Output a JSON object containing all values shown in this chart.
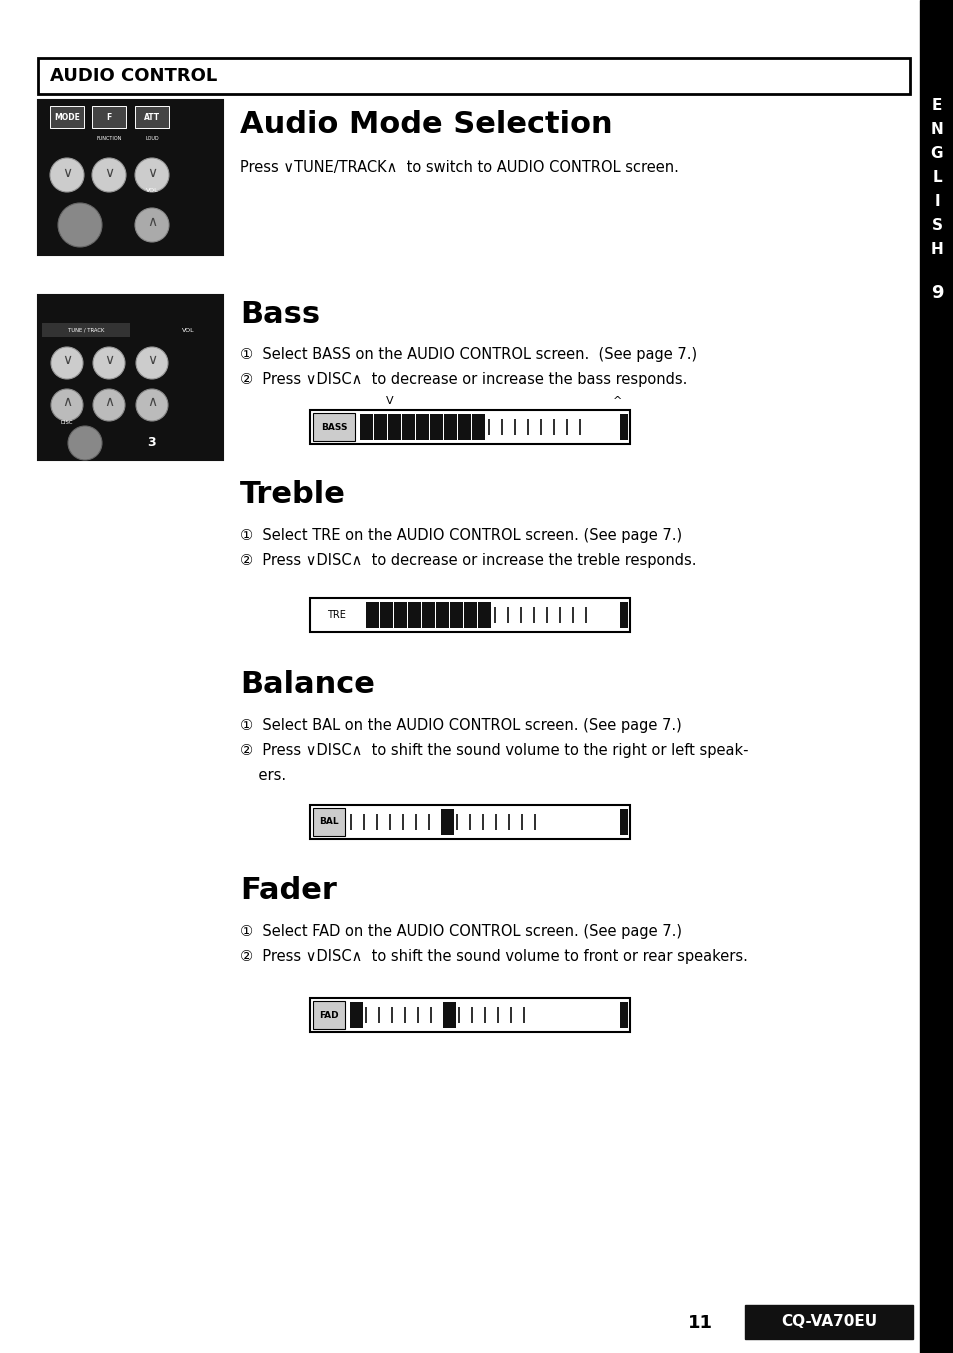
{
  "page_bg": "#ffffff",
  "sidebar_bg": "#000000",
  "sidebar_letters": [
    "E",
    "N",
    "G",
    "L",
    "I",
    "S",
    "H"
  ],
  "sidebar_number": "9",
  "header_title": "AUDIO CONTROL",
  "section1_title": "Audio Mode Selection",
  "section1_body": "Press ∨TUNE/TRACK∧  to switch to AUDIO CONTROL screen.",
  "section2_title": "Bass",
  "section2_line1": "①  Select BASS on the AUDIO CONTROL screen.  (See page 7.)",
  "section2_line2": "②  Press ∨DISC∧  to decrease or increase the bass responds.",
  "section3_title": "Treble",
  "section3_line1": "①  Select TRE on the AUDIO CONTROL screen. (See page 7.)",
  "section3_line2": "②  Press ∨DISC∧  to decrease or increase the treble responds.",
  "section4_title": "Balance",
  "section4_line1": "①  Select BAL on the AUDIO CONTROL screen. (See page 7.)",
  "section4_line2": "②  Press ∨DISC∧  to shift the sound volume to the right or left speak-",
  "section4_line3": "    ers.",
  "section5_title": "Fader",
  "section5_line1": "①  Select FAD on the AUDIO CONTROL screen. (See page 7.)",
  "section5_line2": "②  Press ∨DISC∧  to shift the sound volume to front or rear speakers.",
  "footer_text": "CQ-VA70EU",
  "page_number": "11"
}
